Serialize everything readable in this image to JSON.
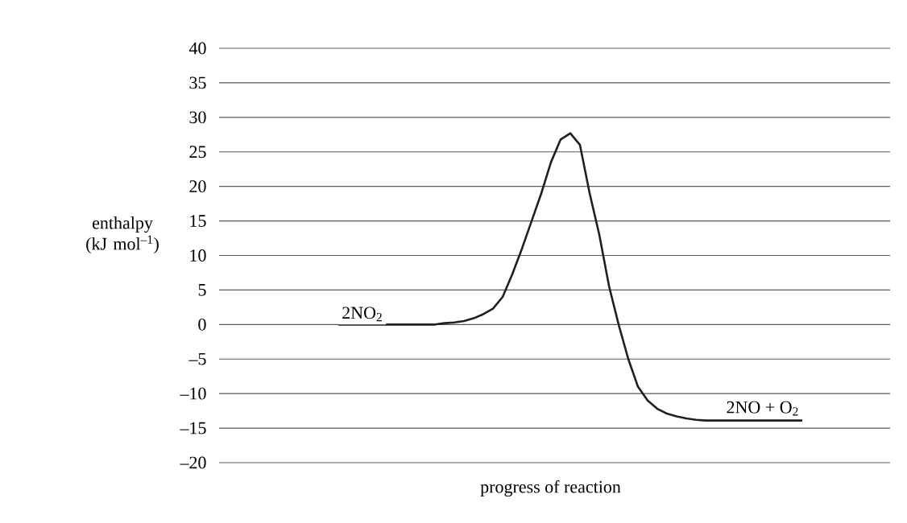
{
  "chart_data": {
    "type": "line",
    "xlabel": "progress of reaction",
    "ylabel": "enthalpy (kJ mol$^{–1}$)",
    "categories": [
      null,
      null,
      null,
      null,
      null,
      null,
      null,
      null,
      null,
      null,
      null,
      null,
      null,
      null,
      null,
      null,
      null,
      null,
      null,
      null,
      null,
      null,
      null,
      null,
      null,
      null,
      null,
      null,
      null,
      null,
      null,
      null,
      null,
      null,
      null,
      null,
      null,
      null,
      null,
      null,
      null,
      null,
      null,
      null,
      null,
      null,
      null,
      null,
      null
    ],
    "series": [
      {
        "color": "#231f20",
        "values": [
          0,
          0,
          0,
          0,
          0,
          0,
          0,
          0,
          0,
          0,
          0,
          0.2,
          0.3,
          0.5,
          0.9,
          1.5,
          2.3,
          4,
          7.3,
          11,
          15,
          19,
          23.5,
          26.8,
          27.7,
          26,
          19,
          13,
          5.6,
          0,
          -5,
          -9,
          -11,
          -12.2,
          -12.9,
          -13.3,
          -13.6,
          -13.8,
          -13.9,
          -13.9,
          -13.9,
          -13.9,
          -13.9,
          -13.9,
          -13.9,
          -13.9,
          -13.9,
          -13.9,
          -13.9
        ]
      }
    ],
    "ylim": [
      -20,
      40
    ],
    "yticks": [
      40,
      35,
      30,
      25,
      20,
      15,
      10,
      5,
      0,
      {
        "value": -5,
        "label": "–5"
      },
      {
        "value": -10,
        "label": "–10"
      },
      {
        "value": -15,
        "label": "–15"
      },
      {
        "value": -20,
        "label": "–20"
      }
    ],
    "grid": "y",
    "tick_labels": "y",
    "marker": "none",
    "line_style": "solid",
    "annotations": [
      {
        "text": "2NO$_{2}$",
        "y": 0
      },
      {
        "text": "2NO + O$_{2}$",
        "y": -13.9
      }
    ]
  }
}
